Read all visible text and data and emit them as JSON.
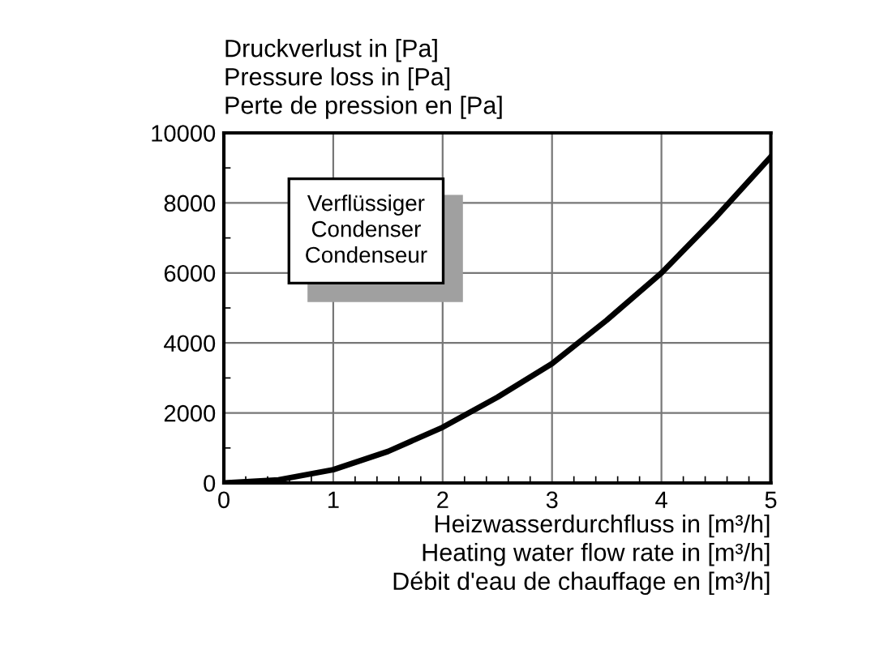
{
  "chart_data": {
    "type": "line",
    "ylabel": "Druckverlust in [Pa]\nPressure loss in [Pa]\nPerte de pression en [Pa]",
    "xlabel": "Heizwasserdurchfluss in [m³/h]\nHeating water flow rate in [m³/h]\nDébit d'eau de chauffage en [m³/h]",
    "annotations": [
      "Verflüssiger\nCondenser\nCondenseur"
    ],
    "x": [
      0,
      0.5,
      1,
      1.5,
      2,
      2.5,
      3,
      3.5,
      4,
      4.5,
      5
    ],
    "series": [
      {
        "color": "#000000",
        "values": [
          0,
          90,
          380,
          900,
          1590,
          2450,
          3410,
          4650,
          6000,
          7600,
          9320
        ]
      }
    ],
    "xlim": [
      0,
      5
    ],
    "xticks": [
      0,
      1,
      2,
      3,
      4,
      5
    ],
    "ylim": [
      0,
      10000
    ],
    "yticks": [
      0,
      2000,
      4000,
      6000,
      8000,
      10000
    ],
    "grid": true,
    "line_style": "solid",
    "marker": "none"
  }
}
